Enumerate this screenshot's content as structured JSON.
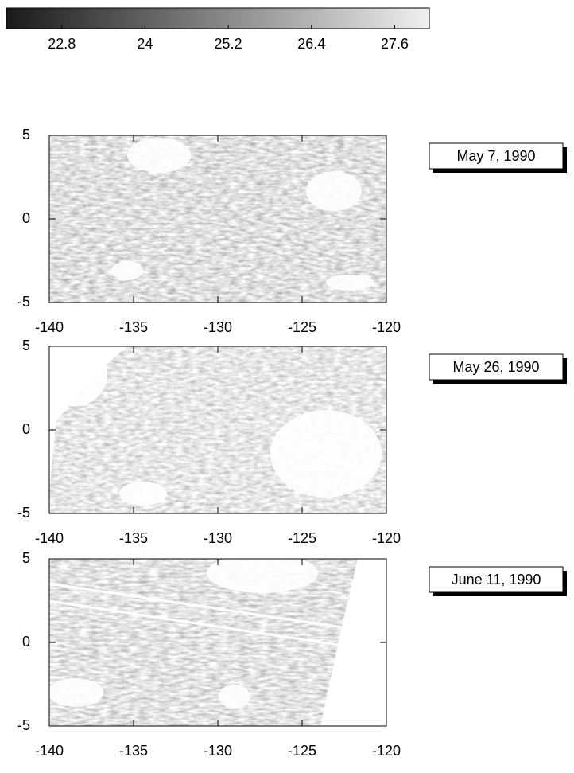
{
  "chart_data": [
    {
      "type": "colorbar",
      "xlim": [
        22,
        28.1
      ],
      "xticks": [
        22.8,
        24,
        25.2,
        26.4,
        27.6
      ],
      "colors": [
        "#1a1a1a",
        "#f0f0f0"
      ]
    },
    {
      "type": "image",
      "annotation": "May 7, 1990",
      "xlim": [
        -140,
        -120
      ],
      "ylim": [
        -5,
        5
      ],
      "xticks": [
        -140,
        -135,
        -130,
        -125,
        -120
      ],
      "yticks": [
        -5,
        0,
        5
      ]
    },
    {
      "type": "image",
      "annotation": "May 26, 1990",
      "xlim": [
        -140,
        -120
      ],
      "ylim": [
        -5,
        5
      ],
      "xticks": [
        -140,
        -135,
        -130,
        -125,
        -120
      ],
      "yticks": [
        -5,
        0,
        5
      ]
    },
    {
      "type": "image",
      "annotation": "June 11, 1990",
      "xlim": [
        -140,
        -120
      ],
      "ylim": [
        -5,
        5
      ],
      "xticks": [
        -140,
        -135,
        -130,
        -125,
        -120
      ],
      "yticks": [
        -5,
        0,
        5
      ]
    }
  ]
}
